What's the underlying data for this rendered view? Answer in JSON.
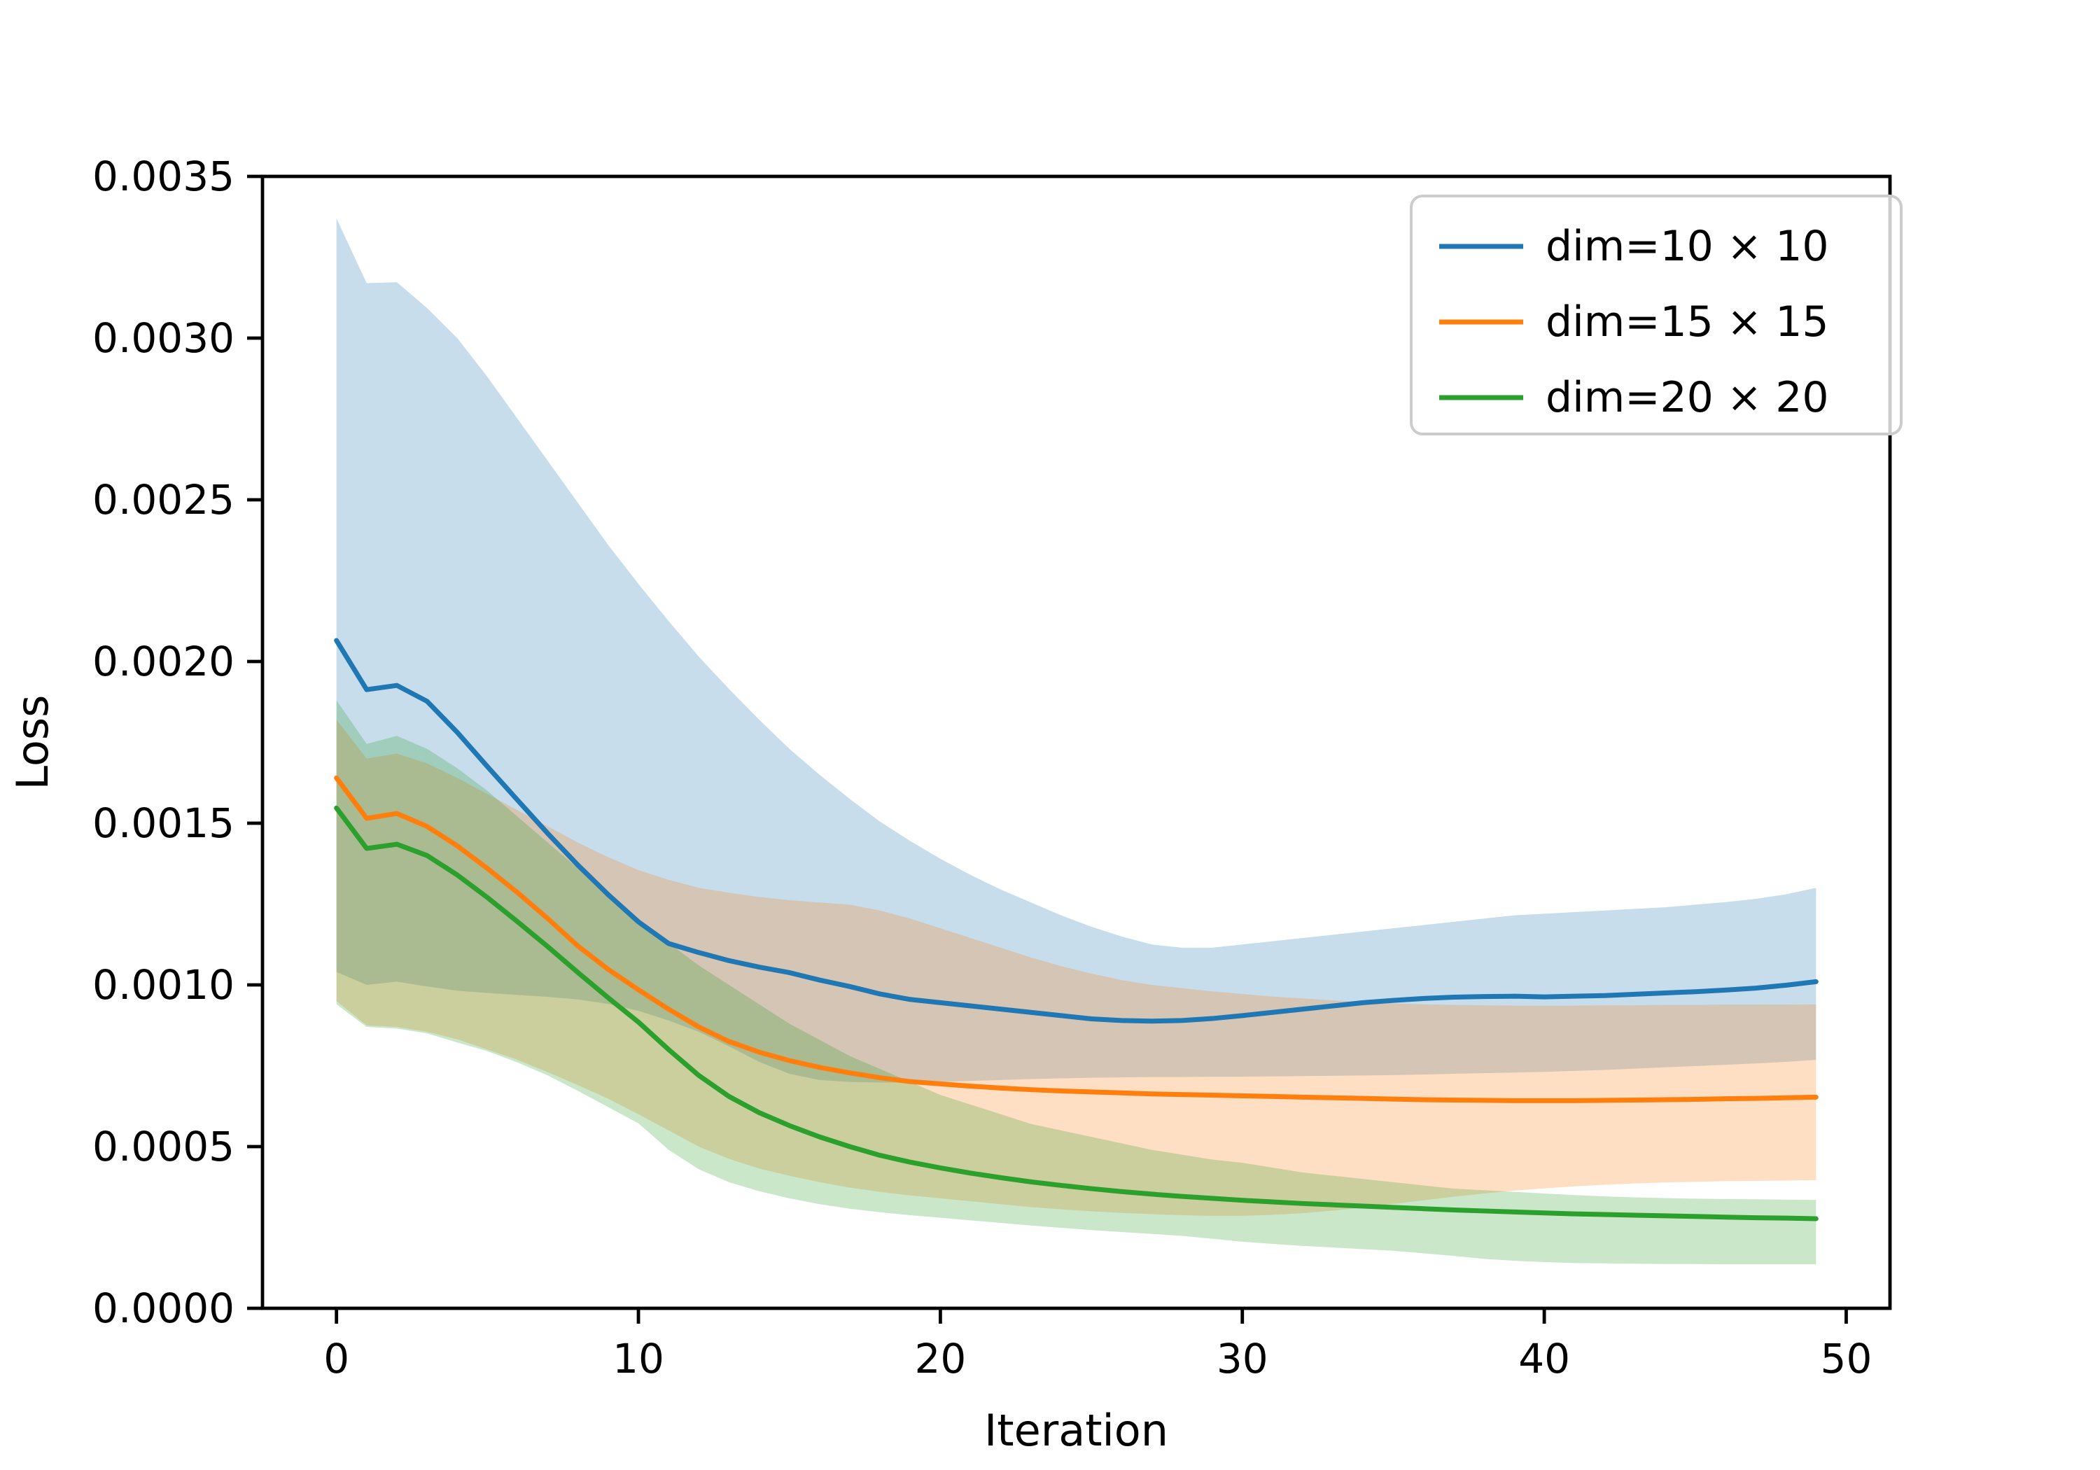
{
  "chart_data": {
    "type": "line",
    "title": "",
    "xlabel": "Iteration",
    "ylabel": "Loss",
    "xlim": [
      -2.45,
      51.45
    ],
    "ylim": [
      0.0,
      0.0035
    ],
    "grid": false,
    "legend_position": "upper right",
    "band_opacity": 0.25,
    "background_color": "#ffffff",
    "axis_color": "#000000",
    "legend_border_color": "#cccccc",
    "xticks": [
      {
        "v": 0,
        "label": "0"
      },
      {
        "v": 10,
        "label": "10"
      },
      {
        "v": 20,
        "label": "20"
      },
      {
        "v": 30,
        "label": "30"
      },
      {
        "v": 40,
        "label": "40"
      },
      {
        "v": 50,
        "label": "50"
      }
    ],
    "yticks": [
      {
        "v": 0.0,
        "label": "0.0000"
      },
      {
        "v": 0.0005,
        "label": "0.0005"
      },
      {
        "v": 0.001,
        "label": "0.0010"
      },
      {
        "v": 0.0015,
        "label": "0.0015"
      },
      {
        "v": 0.002,
        "label": "0.0020"
      },
      {
        "v": 0.0025,
        "label": "0.0025"
      },
      {
        "v": 0.003,
        "label": "0.0030"
      },
      {
        "v": 0.0035,
        "label": "0.0035"
      }
    ],
    "x": [
      0,
      1,
      2,
      3,
      4,
      5,
      6,
      7,
      8,
      9,
      10,
      11,
      12,
      13,
      14,
      15,
      16,
      17,
      18,
      19,
      20,
      21,
      22,
      23,
      24,
      25,
      26,
      27,
      28,
      29,
      30,
      31,
      32,
      33,
      34,
      35,
      36,
      37,
      38,
      39,
      40,
      41,
      42,
      43,
      44,
      45,
      46,
      47,
      48,
      49
    ],
    "series": [
      {
        "label": "dim=10 × 10",
        "color": "#1f77b4",
        "values": [
          0.002065,
          0.001913,
          0.001926,
          0.001877,
          0.001781,
          0.001675,
          0.001571,
          0.001468,
          0.00137,
          0.001279,
          0.001195,
          0.001128,
          0.0011,
          0.001075,
          0.001055,
          0.001038,
          0.001015,
          0.000995,
          0.000972,
          0.000955,
          0.000945,
          0.000935,
          0.000925,
          0.000915,
          0.000905,
          0.000895,
          0.00089,
          0.000888,
          0.00089,
          0.000896,
          0.000905,
          0.000915,
          0.000925,
          0.000935,
          0.000945,
          0.000952,
          0.000958,
          0.000962,
          0.000964,
          0.000965,
          0.000963,
          0.000965,
          0.000967,
          0.000971,
          0.000975,
          0.000979,
          0.000984,
          0.00099,
          0.000999,
          0.00101
        ],
        "band_upper": [
          0.00337,
          0.00317,
          0.003173,
          0.003093,
          0.003,
          0.00288,
          0.00275,
          0.00262,
          0.00249,
          0.00236,
          0.00224,
          0.002125,
          0.002015,
          0.001915,
          0.00182,
          0.00173,
          0.00165,
          0.001575,
          0.001505,
          0.001445,
          0.00139,
          0.00134,
          0.001295,
          0.001255,
          0.001215,
          0.00118,
          0.00115,
          0.001125,
          0.001115,
          0.001115,
          0.001125,
          0.001135,
          0.001145,
          0.001155,
          0.001165,
          0.001175,
          0.001185,
          0.001195,
          0.001205,
          0.001215,
          0.00122,
          0.001225,
          0.00123,
          0.001235,
          0.00124,
          0.001248,
          0.001256,
          0.001266,
          0.00128,
          0.0013
        ],
        "band_lower": [
          0.00104,
          0.001,
          0.00101,
          0.000995,
          0.000982,
          0.000975,
          0.000969,
          0.000963,
          0.000955,
          0.000941,
          0.00092,
          0.00089,
          0.000855,
          0.00081,
          0.000762,
          0.000725,
          0.000706,
          0.0007,
          0.000698,
          0.000698,
          0.0007,
          0.000703,
          0.000706,
          0.000709,
          0.000711,
          0.000713,
          0.000714,
          0.000715,
          0.000715,
          0.000716,
          0.000716,
          0.000717,
          0.000718,
          0.000719,
          0.00072,
          0.000721,
          0.000723,
          0.000725,
          0.000727,
          0.000729,
          0.000731,
          0.000734,
          0.000737,
          0.000741,
          0.000745,
          0.000749,
          0.000753,
          0.000757,
          0.000762,
          0.000768
        ]
      },
      {
        "label": "dim=15 × 15",
        "color": "#ff7f0e",
        "values": [
          0.00164,
          0.001515,
          0.00153,
          0.00149,
          0.00143,
          0.00136,
          0.001285,
          0.001205,
          0.00112,
          0.001048,
          0.000985,
          0.000925,
          0.00087,
          0.000825,
          0.000792,
          0.000766,
          0.000745,
          0.000728,
          0.000713,
          0.000701,
          0.000694,
          0.000687,
          0.000681,
          0.000676,
          0.000672,
          0.000669,
          0.000666,
          0.000663,
          0.000661,
          0.000659,
          0.000657,
          0.000655,
          0.000653,
          0.000651,
          0.000649,
          0.000647,
          0.000645,
          0.000644,
          0.000643,
          0.000642,
          0.000642,
          0.000642,
          0.000643,
          0.000644,
          0.000645,
          0.000646,
          0.000648,
          0.000649,
          0.000651,
          0.000653
        ],
        "band_upper": [
          0.00182,
          0.0017,
          0.001715,
          0.001685,
          0.00164,
          0.00159,
          0.00154,
          0.00149,
          0.00144,
          0.001395,
          0.001355,
          0.001325,
          0.0013,
          0.001285,
          0.001272,
          0.001262,
          0.001255,
          0.001248,
          0.00123,
          0.001205,
          0.001175,
          0.001145,
          0.001115,
          0.001085,
          0.001058,
          0.001035,
          0.001015,
          0.001,
          0.00099,
          0.00098,
          0.000972,
          0.000964,
          0.000958,
          0.000952,
          0.000947,
          0.000943,
          0.00094,
          0.000938,
          0.000937,
          0.000936,
          0.000936,
          0.000936,
          0.000937,
          0.000937,
          0.000938,
          0.000938,
          0.000939,
          0.000939,
          0.000939,
          0.00094
        ],
        "band_lower": [
          0.00095,
          0.000875,
          0.00087,
          0.000855,
          0.000832,
          0.0008,
          0.000768,
          0.00073,
          0.00069,
          0.000648,
          0.0006,
          0.00055,
          0.0005,
          0.000462,
          0.000432,
          0.00041,
          0.00039,
          0.000373,
          0.00036,
          0.000349,
          0.00034,
          0.000331,
          0.000322,
          0.000313,
          0.000306,
          0.0003,
          0.000295,
          0.000291,
          0.000288,
          0.000286,
          0.000286,
          0.000289,
          0.000294,
          0.000302,
          0.000312,
          0.000323,
          0.000334,
          0.000345,
          0.000355,
          0.000364,
          0.000371,
          0.000377,
          0.000382,
          0.000386,
          0.000389,
          0.000391,
          0.000393,
          0.000394,
          0.000395,
          0.000396
        ]
      },
      {
        "label": "dim=20 × 20",
        "color": "#2ca02c",
        "values": [
          0.001547,
          0.001422,
          0.001435,
          0.0014,
          0.00134,
          0.00127,
          0.001195,
          0.001118,
          0.001038,
          0.00096,
          0.000885,
          0.0008,
          0.00072,
          0.000655,
          0.000605,
          0.000565,
          0.00053,
          0.0005,
          0.000473,
          0.000452,
          0.000434,
          0.000418,
          0.000404,
          0.000391,
          0.00038,
          0.00037,
          0.000361,
          0.000353,
          0.000346,
          0.00034,
          0.000334,
          0.000329,
          0.000324,
          0.00032,
          0.000316,
          0.000312,
          0.000308,
          0.000304,
          0.000301,
          0.000298,
          0.000295,
          0.000292,
          0.00029,
          0.000288,
          0.000286,
          0.000284,
          0.000282,
          0.00028,
          0.000279,
          0.000277
        ],
        "band_upper": [
          0.00188,
          0.001745,
          0.00177,
          0.00173,
          0.00167,
          0.0016,
          0.00152,
          0.00144,
          0.00136,
          0.00128,
          0.0012,
          0.00113,
          0.00106,
          0.001,
          0.00094,
          0.00088,
          0.00083,
          0.00078,
          0.00074,
          0.0007,
          0.00066,
          0.00063,
          0.0006,
          0.00057,
          0.00055,
          0.00053,
          0.00051,
          0.00049,
          0.000475,
          0.00046,
          0.00045,
          0.000435,
          0.00042,
          0.00041,
          0.0004,
          0.00039,
          0.00038,
          0.00037,
          0.000365,
          0.00036,
          0.000355,
          0.00035,
          0.000346,
          0.000343,
          0.000341,
          0.000339,
          0.000338,
          0.000337,
          0.000336,
          0.000335
        ],
        "band_lower": [
          0.00094,
          0.00087,
          0.000865,
          0.00085,
          0.000822,
          0.000795,
          0.00076,
          0.00072,
          0.000672,
          0.000622,
          0.000572,
          0.00049,
          0.00043,
          0.00039,
          0.000362,
          0.00034,
          0.000322,
          0.000308,
          0.000297,
          0.000288,
          0.00028,
          0.000272,
          0.000264,
          0.000256,
          0.000249,
          0.000242,
          0.000236,
          0.00023,
          0.000224,
          0.000215,
          0.000206,
          0.000199,
          0.000193,
          0.000188,
          0.000183,
          0.000178,
          0.00017,
          0.000162,
          0.000153,
          0.000147,
          0.000143,
          0.00014,
          0.000139,
          0.000138,
          0.000137,
          0.000137,
          0.000136,
          0.000136,
          0.000136,
          0.000136
        ]
      }
    ]
  }
}
